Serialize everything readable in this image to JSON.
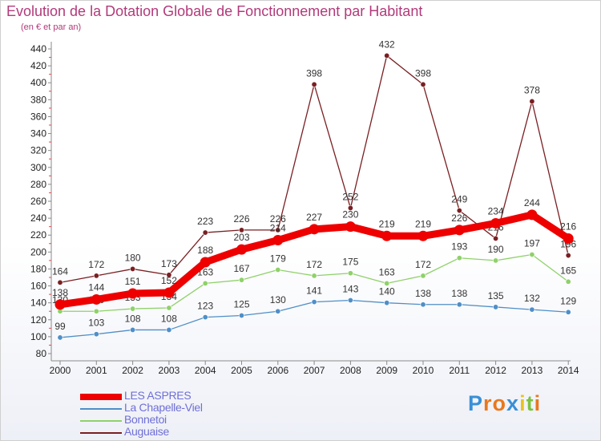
{
  "header": {
    "title": "Evolution de la Dotation Globale de Fonctionnement par Habitant",
    "subtitle": "(en € et par an)"
  },
  "logo": {
    "letters": [
      "P",
      "r",
      "o",
      "x",
      "i",
      "t",
      "i"
    ],
    "colors": [
      "#3a8fd6",
      "#e8781e",
      "#e8781e",
      "#3a8fd6",
      "#e8c31e",
      "#7cc142",
      "#e8781e"
    ]
  },
  "chart_data": {
    "type": "line",
    "title": "Evolution de la Dotation Globale de Fonctionnement par Habitant",
    "subtitle": "(en € et par an)",
    "categories": [
      "2000",
      "2001",
      "2002",
      "2003",
      "2004",
      "2005",
      "2006",
      "2007",
      "2008",
      "2009",
      "2010",
      "2011",
      "2012",
      "2013",
      "2014"
    ],
    "ylim": [
      80,
      440
    ],
    "yticks": [
      80,
      100,
      120,
      140,
      160,
      180,
      200,
      220,
      240,
      260,
      280,
      300,
      320,
      340,
      360,
      380,
      400,
      420,
      440
    ],
    "grid": false,
    "legend_position": "bottom-left",
    "series": [
      {
        "name": "Auguaise",
        "color": "#7a1f22",
        "values": [
          164,
          172,
          180,
          173,
          223,
          226,
          226,
          398,
          252,
          432,
          398,
          249,
          216,
          378,
          196
        ]
      },
      {
        "name": "Bonnetoi",
        "color": "#8fd16a",
        "values": [
          130,
          130,
          133,
          134,
          163,
          167,
          179,
          172,
          175,
          163,
          172,
          193,
          190,
          197,
          165
        ]
      },
      {
        "name": "La Chapelle-Viel",
        "color": "#4f8fc8",
        "values": [
          99,
          103,
          108,
          108,
          123,
          125,
          130,
          141,
          143,
          140,
          138,
          138,
          135,
          132,
          129
        ]
      },
      {
        "name": "LES ASPRES",
        "color": "#ee0000",
        "values": [
          138,
          144,
          151,
          152,
          188,
          203,
          214,
          227,
          230,
          219,
          219,
          226,
          234,
          244,
          216
        ]
      }
    ],
    "legend_order": [
      "LES ASPRES",
      "La Chapelle-Viel",
      "Bonnetoi",
      "Auguaise"
    ]
  }
}
